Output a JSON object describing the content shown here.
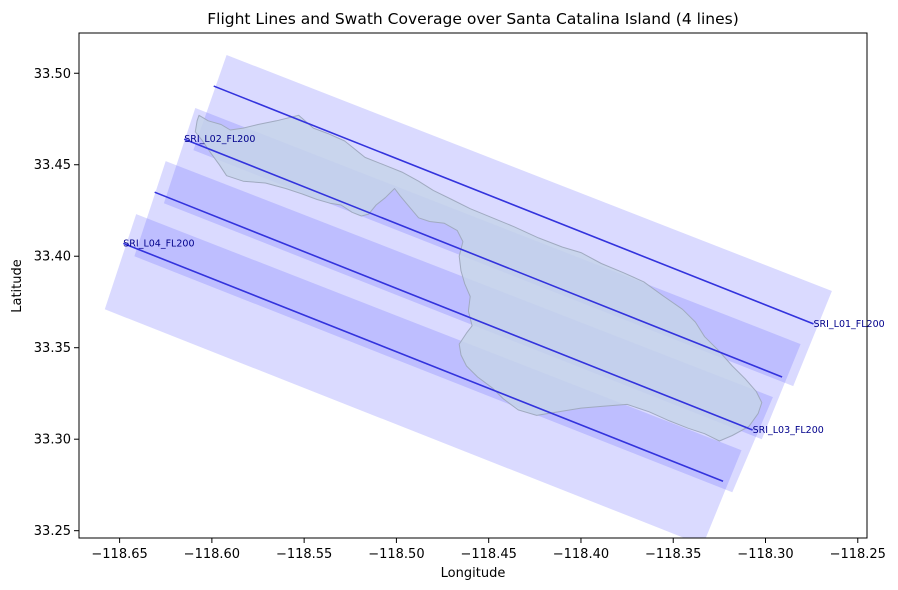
{
  "chart_data": {
    "type": "line",
    "title": "Flight Lines and Swath Coverage over Santa Catalina Island (4 lines)",
    "xlabel": "Longitude",
    "ylabel": "Latitude",
    "xlim": [
      -118.672,
      -118.245
    ],
    "ylim": [
      33.246,
      33.522
    ],
    "xticks": [
      -118.65,
      -118.6,
      -118.55,
      -118.5,
      -118.45,
      -118.4,
      -118.35,
      -118.3,
      -118.25
    ],
    "xtick_labels": [
      "−118.65",
      "−118.60",
      "−118.55",
      "−118.50",
      "−118.45",
      "−118.40",
      "−118.35",
      "−118.30",
      "−118.25"
    ],
    "yticks": [
      33.25,
      33.3,
      33.35,
      33.4,
      33.45,
      33.5
    ],
    "ytick_labels": [
      "33.25",
      "33.30",
      "33.35",
      "33.40",
      "33.45",
      "33.50"
    ],
    "grid": false,
    "colors": {
      "swath": "#6b6bff",
      "flight_line": "#3333dd",
      "island_fill": "#c5d3ea",
      "island_edge": "#a0aac0",
      "label": "#00008b"
    },
    "series": [
      {
        "name": "SRI_L01_FL200",
        "label_at": "end",
        "x": [
          -118.599,
          -118.274
        ],
        "y": [
          33.493,
          33.363
        ],
        "swath": [
          [
            -118.592,
            33.51
          ],
          [
            -118.264,
            33.381
          ],
          [
            -118.285,
            33.329
          ],
          [
            -118.61,
            33.458
          ]
        ]
      },
      {
        "name": "SRI_L02_FL200",
        "label_at": "start",
        "x": [
          -118.615,
          -118.291
        ],
        "y": [
          33.464,
          33.334
        ],
        "swath": [
          [
            -118.609,
            33.481
          ],
          [
            -118.281,
            33.352
          ],
          [
            -118.302,
            33.3
          ],
          [
            -118.626,
            33.429
          ]
        ]
      },
      {
        "name": "SRI_L03_FL200",
        "label_at": "end",
        "x": [
          -118.631,
          -118.307
        ],
        "y": [
          33.435,
          33.305
        ],
        "swath": [
          [
            -118.625,
            33.452
          ],
          [
            -118.296,
            33.323
          ],
          [
            -118.318,
            33.271
          ],
          [
            -118.642,
            33.4
          ]
        ]
      },
      {
        "name": "SRI_L04_FL200",
        "label_at": "start",
        "x": [
          -118.648,
          -118.323
        ],
        "y": [
          33.407,
          33.277
        ],
        "swath": [
          [
            -118.641,
            33.423
          ],
          [
            -118.313,
            33.294
          ],
          [
            -118.334,
            33.242
          ],
          [
            -118.658,
            33.371
          ]
        ]
      }
    ],
    "island_outline": [
      [
        -118.607,
        33.477
      ],
      [
        -118.602,
        33.474
      ],
      [
        -118.595,
        33.472
      ],
      [
        -118.59,
        33.469
      ],
      [
        -118.583,
        33.47
      ],
      [
        -118.575,
        33.472
      ],
      [
        -118.565,
        33.474
      ],
      [
        -118.553,
        33.477
      ],
      [
        -118.545,
        33.47
      ],
      [
        -118.537,
        33.467
      ],
      [
        -118.528,
        33.463
      ],
      [
        -118.517,
        33.454
      ],
      [
        -118.507,
        33.45
      ],
      [
        -118.497,
        33.446
      ],
      [
        -118.488,
        33.441
      ],
      [
        -118.48,
        33.436
      ],
      [
        -118.47,
        33.431
      ],
      [
        -118.46,
        33.426
      ],
      [
        -118.448,
        33.421
      ],
      [
        -118.436,
        33.416
      ],
      [
        -118.423,
        33.41
      ],
      [
        -118.41,
        33.405
      ],
      [
        -118.4,
        33.402
      ],
      [
        -118.389,
        33.396
      ],
      [
        -118.377,
        33.391
      ],
      [
        -118.366,
        33.386
      ],
      [
        -118.355,
        33.378
      ],
      [
        -118.345,
        33.371
      ],
      [
        -118.338,
        33.364
      ],
      [
        -118.333,
        33.356
      ],
      [
        -118.325,
        33.348
      ],
      [
        -118.318,
        33.34
      ],
      [
        -118.311,
        33.333
      ],
      [
        -118.305,
        33.326
      ],
      [
        -118.302,
        33.32
      ],
      [
        -118.304,
        33.314
      ],
      [
        -118.309,
        33.307
      ],
      [
        -118.318,
        33.302
      ],
      [
        -118.325,
        33.299
      ],
      [
        -118.333,
        33.303
      ],
      [
        -118.342,
        33.306
      ],
      [
        -118.352,
        33.31
      ],
      [
        -118.363,
        33.315
      ],
      [
        -118.375,
        33.319
      ],
      [
        -118.388,
        33.318
      ],
      [
        -118.4,
        33.317
      ],
      [
        -118.412,
        33.315
      ],
      [
        -118.424,
        33.313
      ],
      [
        -118.434,
        33.316
      ],
      [
        -118.442,
        33.322
      ],
      [
        -118.448,
        33.328
      ],
      [
        -118.456,
        33.334
      ],
      [
        -118.462,
        33.34
      ],
      [
        -118.465,
        33.346
      ],
      [
        -118.466,
        33.352
      ],
      [
        -118.462,
        33.358
      ],
      [
        -118.459,
        33.362
      ],
      [
        -118.461,
        33.37
      ],
      [
        -118.46,
        33.378
      ],
      [
        -118.463,
        33.385
      ],
      [
        -118.465,
        33.392
      ],
      [
        -118.466,
        33.4
      ],
      [
        -118.464,
        33.408
      ],
      [
        -118.467,
        33.414
      ],
      [
        -118.474,
        33.418
      ],
      [
        -118.482,
        33.419
      ],
      [
        -118.488,
        33.421
      ],
      [
        -118.493,
        33.427
      ],
      [
        -118.498,
        33.433
      ],
      [
        -118.501,
        33.437
      ],
      [
        -118.506,
        33.432
      ],
      [
        -118.511,
        33.428
      ],
      [
        -118.515,
        33.423
      ],
      [
        -118.519,
        33.422
      ],
      [
        -118.524,
        33.424
      ],
      [
        -118.53,
        33.428
      ],
      [
        -118.536,
        33.429
      ],
      [
        -118.543,
        33.431
      ],
      [
        -118.551,
        33.434
      ],
      [
        -118.56,
        33.437
      ],
      [
        -118.571,
        33.44
      ],
      [
        -118.583,
        33.441
      ],
      [
        -118.592,
        33.444
      ],
      [
        -118.596,
        33.45
      ],
      [
        -118.601,
        33.457
      ],
      [
        -118.605,
        33.463
      ],
      [
        -118.609,
        33.468
      ],
      [
        -118.608,
        33.474
      ]
    ]
  }
}
